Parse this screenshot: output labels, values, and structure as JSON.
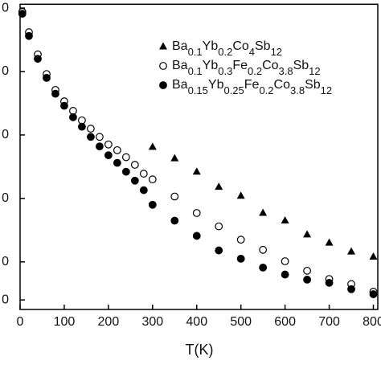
{
  "chart_data": {
    "type": "scatter",
    "xlabel": "T(K)",
    "xlim": [
      0,
      810
    ],
    "ylim": [
      -47.5,
      0.6
    ],
    "xticks": [
      0,
      100,
      200,
      300,
      400,
      500,
      600,
      700,
      800
    ],
    "yticks": [
      {
        "value": 0,
        "label": "0"
      },
      {
        "value": -10,
        "label": "0"
      },
      {
        "value": -20,
        "label": "0"
      },
      {
        "value": -30,
        "label": "0"
      },
      {
        "value": -40,
        "label": "0"
      },
      {
        "value": -46,
        "label": "0"
      }
    ],
    "series": [
      {
        "name": "Ba0.1Yb0.2Co4Sb12",
        "color": "#000000",
        "marker": "triangle",
        "x": [
          300,
          350,
          400,
          450,
          500,
          550,
          600,
          650,
          700,
          750,
          800
        ],
        "values": [
          -21.9,
          -23.7,
          -25.8,
          -28.2,
          -29.6,
          -32.3,
          -33.5,
          -35.7,
          -37.0,
          -38.4,
          -39.2
        ]
      },
      {
        "name": "Ba0.1Yb0.3Fe0.2Co3.8Sb12",
        "color": "#000000",
        "marker": "open-circle",
        "x": [
          5,
          20,
          40,
          60,
          80,
          100,
          120,
          140,
          160,
          180,
          200,
          220,
          240,
          260,
          280,
          300,
          350,
          400,
          450,
          500,
          550,
          600,
          650,
          700,
          750,
          800
        ],
        "values": [
          -0.6,
          -3.8,
          -7.3,
          -10.4,
          -12.9,
          -14.7,
          -16.2,
          -17.7,
          -19.0,
          -20.3,
          -21.5,
          -22.4,
          -23.5,
          -24.7,
          -26.1,
          -27.0,
          -29.7,
          -32.3,
          -34.4,
          -36.5,
          -38.1,
          -39.9,
          -41.4,
          -42.7,
          -43.5,
          -44.7
        ]
      },
      {
        "name": "Ba0.15Yb0.25Fe0.2Co3.8Sb12",
        "color": "#000000",
        "marker": "filled-circle",
        "x": [
          5,
          20,
          40,
          60,
          80,
          100,
          120,
          140,
          160,
          180,
          200,
          220,
          240,
          260,
          280,
          300,
          350,
          400,
          450,
          500,
          550,
          600,
          650,
          700,
          750,
          800
        ],
        "values": [
          -0.9,
          -4.4,
          -8.0,
          -11.0,
          -13.5,
          -15.4,
          -17.2,
          -18.7,
          -20.3,
          -21.8,
          -23.2,
          -24.4,
          -25.8,
          -27.2,
          -28.7,
          -31.0,
          -33.5,
          -35.9,
          -38.2,
          -39.5,
          -40.9,
          -42.0,
          -42.8,
          -43.3,
          -44.3,
          -45.1
        ]
      }
    ]
  }
}
